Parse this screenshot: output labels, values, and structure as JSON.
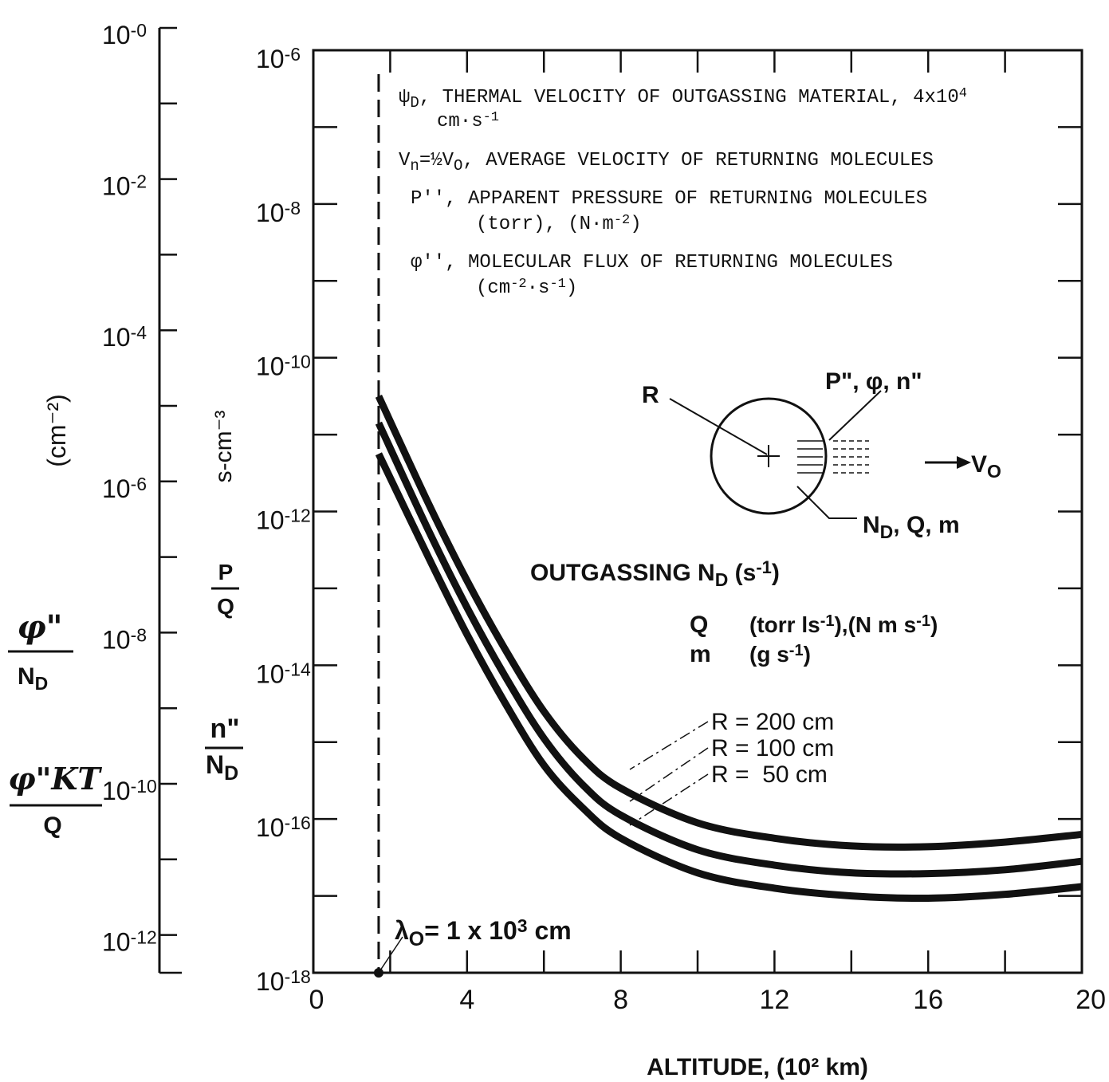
{
  "chart_data": {
    "type": "line",
    "xlabel": "ALTITUDE, (10² km)",
    "x_ticks": [
      "0",
      "4",
      "8",
      "12",
      "16",
      "20"
    ],
    "xlim": [
      0,
      20
    ],
    "ylim_exponent": [
      -18,
      -6
    ],
    "y_scale": "log",
    "main_y_ticks": [
      {
        "base": "10",
        "exp": "-6"
      },
      {
        "base": "10",
        "exp": "-8"
      },
      {
        "base": "10",
        "exp": "-10"
      },
      {
        "base": "10",
        "exp": "-12"
      },
      {
        "base": "10",
        "exp": "-14"
      },
      {
        "base": "10",
        "exp": "-16"
      },
      {
        "base": "10",
        "exp": "-18"
      }
    ],
    "left_y_ticks": [
      {
        "base": "10",
        "exp": "-0"
      },
      {
        "base": "10",
        "exp": "-2"
      },
      {
        "base": "10",
        "exp": "-4"
      },
      {
        "base": "10",
        "exp": "-6"
      },
      {
        "base": "10",
        "exp": "-8"
      },
      {
        "base": "10",
        "exp": "-10"
      },
      {
        "base": "10",
        "exp": "-12"
      }
    ],
    "left_axis_labels": {
      "unit": "(cm⁻²)",
      "phi_num": "φ\"",
      "phi_den": "N",
      "phi_den_sub": "D",
      "phikt_num": "φ\"KT",
      "phikt_den": "Q"
    },
    "mid_axis_labels": {
      "unit": "s-cm⁻³",
      "pq_num": "P",
      "pq_den": "Q",
      "n_num": "n\"",
      "n_den": "N",
      "n_den_sub": "D"
    },
    "series": [
      {
        "name": "R = 200 cm",
        "points": [
          [
            1.7,
            -10.5
          ],
          [
            3,
            -11.9
          ],
          [
            4,
            -12.9
          ],
          [
            5,
            -13.8
          ],
          [
            6,
            -14.6
          ],
          [
            7,
            -15.2
          ],
          [
            8,
            -15.6
          ],
          [
            10,
            -16.05
          ],
          [
            12,
            -16.25
          ],
          [
            14,
            -16.35
          ],
          [
            16,
            -16.36
          ],
          [
            18,
            -16.3
          ],
          [
            20,
            -16.2
          ]
        ]
      },
      {
        "name": "R = 100 cm",
        "points": [
          [
            1.7,
            -10.85
          ],
          [
            3,
            -12.25
          ],
          [
            4,
            -13.25
          ],
          [
            5,
            -14.15
          ],
          [
            6,
            -14.95
          ],
          [
            7,
            -15.55
          ],
          [
            8,
            -15.95
          ],
          [
            10,
            -16.4
          ],
          [
            12,
            -16.6
          ],
          [
            14,
            -16.7
          ],
          [
            16,
            -16.71
          ],
          [
            18,
            -16.66
          ],
          [
            20,
            -16.55
          ]
        ]
      },
      {
        "name": "R = 50 cm",
        "points": [
          [
            1.7,
            -11.25
          ],
          [
            3,
            -12.6
          ],
          [
            4,
            -13.6
          ],
          [
            5,
            -14.5
          ],
          [
            6,
            -15.3
          ],
          [
            7,
            -15.85
          ],
          [
            8,
            -16.25
          ],
          [
            10,
            -16.7
          ],
          [
            12,
            -16.9
          ],
          [
            14,
            -17.0
          ],
          [
            16,
            -17.03
          ],
          [
            18,
            -16.98
          ],
          [
            20,
            -16.88
          ]
        ]
      }
    ],
    "series_labels": [
      "R = 200 cm",
      "R = 100 cm",
      "R =  50 cm"
    ],
    "lambda_x": 1.7,
    "lambda_label": {
      "lambda": "λ",
      "sub": "O",
      "mid": "= 1 x 10",
      "sup": "3",
      "end": " cm"
    },
    "legend_lines": [
      {
        "sym": "ψ",
        "sub": "D",
        "text": ", THERMAL VELOCITY OF OUTGASSING MATERIAL, 4x10",
        "sup": "4"
      },
      {
        "text2": "cm·s",
        "sup2": "-1"
      },
      {
        "text": "V",
        "sub": "n",
        "rest": "=½V",
        "sub2": "O",
        "rest2": ", AVERAGE VELOCITY OF RETURNING MOLECULES"
      },
      {
        "text": "P′′, APPARENT PRESSURE OF RETURNING MOLECULES"
      },
      {
        "text": "(torr), (N·m",
        "sup": "-2",
        "end": ")"
      },
      {
        "text": "φ′′, MOLECULAR FLUX OF RETURNING MOLECULES"
      },
      {
        "text": "(cm",
        "sup": "-2",
        "mid": "·s",
        "sup2": "-1",
        "end": ")"
      }
    ],
    "inset": {
      "r_label": "R",
      "p_label": "P\", φ, n\"",
      "v_label": "V",
      "v_sub": "O",
      "nd_label": "N",
      "nd_sub": "D",
      "nd_rest": ", Q, m"
    },
    "outgassing": {
      "title": "OUTGASSING  N",
      "title_sub": "D",
      "title_unit": " (s",
      "title_sup": "-1",
      "title_end": ")",
      "q_sym": "Q",
      "q_text": "(torr ls",
      "q_sup": "-1",
      "q_mid": "),(N m s",
      "q_sup2": "-1",
      "q_end": ")",
      "m_sym": "m",
      "m_text": "(g s",
      "m_sup": "-1",
      "m_end": ")"
    }
  }
}
